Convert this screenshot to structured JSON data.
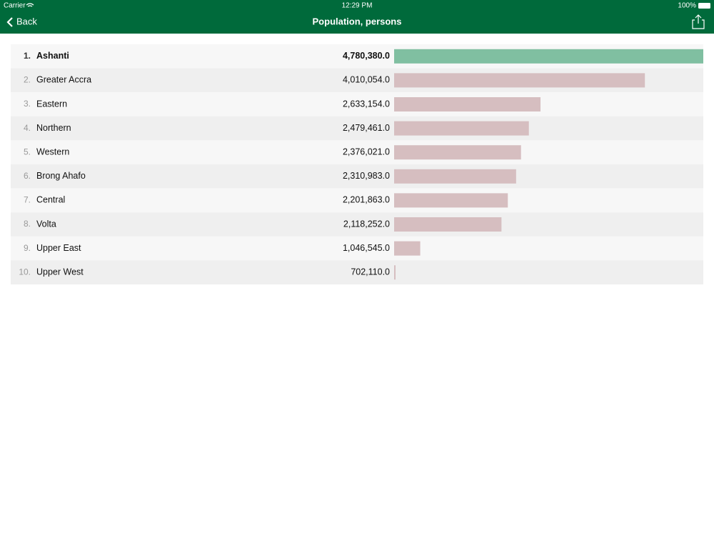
{
  "status_bar": {
    "carrier": "Carrier",
    "time": "12:29 PM",
    "battery": "100%"
  },
  "nav_bar": {
    "back": "Back",
    "title": "Population, persons"
  },
  "chart_data": {
    "type": "bar",
    "orientation": "horizontal",
    "ranks": [
      "1.",
      "2.",
      "3.",
      "4.",
      "5.",
      "6.",
      "7.",
      "8.",
      "9.",
      "10."
    ],
    "categories": [
      "Ashanti",
      "Greater Accra",
      "Eastern",
      "Northern",
      "Western",
      "Brong Ahafo",
      "Central",
      "Volta",
      "Upper East",
      "Upper West"
    ],
    "values": [
      4780380.0,
      4010054.0,
      2633154.0,
      2479461.0,
      2376021.0,
      2310983.0,
      2201863.0,
      2118252.0,
      1046545.0,
      702110.0
    ],
    "value_labels": [
      "4,780,380.0",
      "4,010,054.0",
      "2,633,154.0",
      "2,479,461.0",
      "2,376,021.0",
      "2,310,983.0",
      "2,201,863.0",
      "2,118,252.0",
      "1,046,545.0",
      "702,110.0"
    ],
    "colors": [
      "#80bfa1",
      "#d6bec0",
      "#d6bec0",
      "#d6bec0",
      "#d6bec0",
      "#d6bec0",
      "#d6bec0",
      "#d6bec0",
      "#d6bec0",
      "#d6bec0"
    ]
  }
}
